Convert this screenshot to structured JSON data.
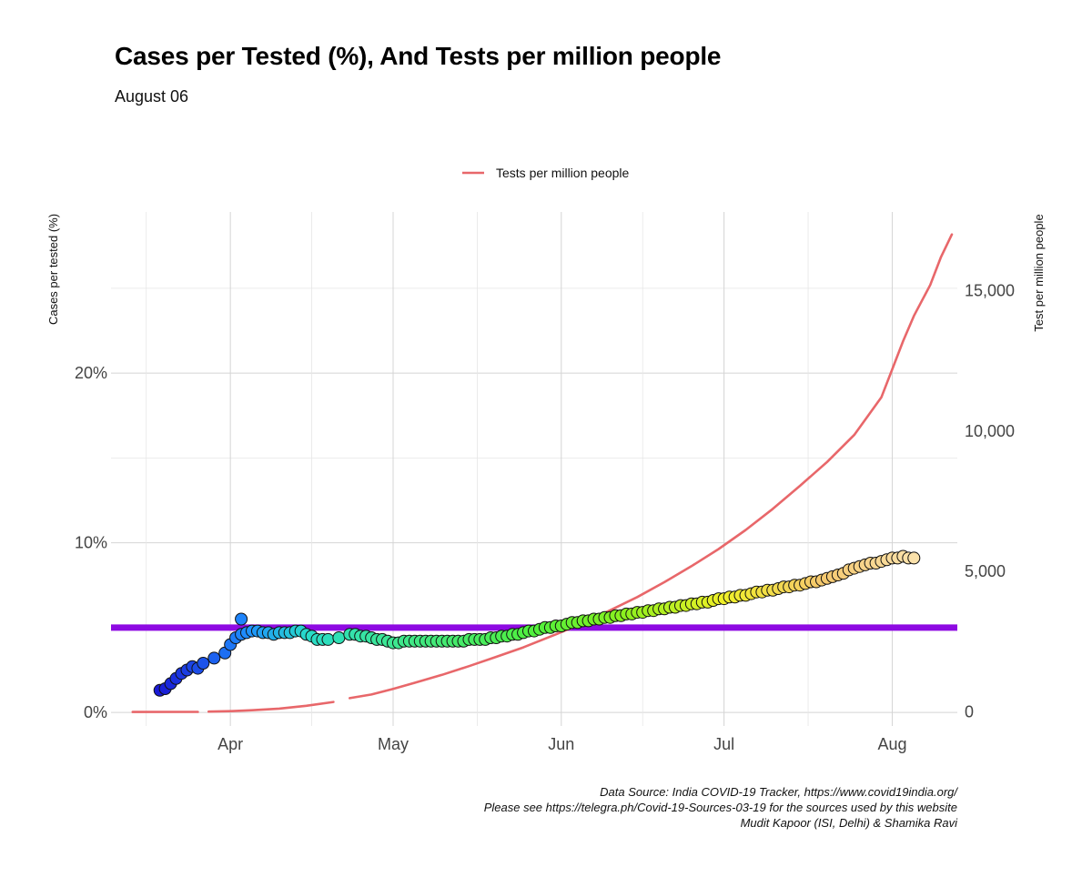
{
  "title": "Cases per Tested (%), And Tests per million people",
  "subtitle": "August 06",
  "legend": {
    "label": "Tests per million people",
    "color": "#e8676a"
  },
  "caption": [
    "Data Source: India COVID-19 Tracker, https://www.covid19india.org/",
    "Please see https://telegra.ph/Covid-19-Sources-03-19 for the sources used by this website",
    "Mudit Kapoor (ISI, Delhi) & Shamika Ravi"
  ],
  "chart_data": {
    "type": "scatter",
    "title": "Cases per Tested (%), And Tests per million people",
    "subtitle": "August 06",
    "ylabel": "Cases per tested (%)",
    "ylabel_right": "Test per million people",
    "x_axis": {
      "type": "date",
      "range": [
        "2020-03-10",
        "2020-08-13"
      ],
      "ticks": [
        {
          "date": "2020-04-01",
          "label": "Apr"
        },
        {
          "date": "2020-05-01",
          "label": "May"
        },
        {
          "date": "2020-06-01",
          "label": "Jun"
        },
        {
          "date": "2020-07-01",
          "label": "Jul"
        },
        {
          "date": "2020-08-01",
          "label": "Aug"
        }
      ]
    },
    "y_axis": {
      "range": [
        -0.8,
        29.5
      ],
      "ticks": [
        {
          "value": 0,
          "label": "0%"
        },
        {
          "value": 10,
          "label": "10%"
        },
        {
          "value": 20,
          "label": "20%"
        }
      ],
      "minor": [
        5,
        15,
        25
      ]
    },
    "y2_axis": {
      "range": [
        -500,
        17800
      ],
      "ticks": [
        {
          "value": 0,
          "label": "0"
        },
        {
          "value": 5000,
          "label": "5,000"
        },
        {
          "value": 10000,
          "label": "10,000"
        },
        {
          "value": 15000,
          "label": "15,000"
        }
      ]
    },
    "reference_line": {
      "y": 5,
      "color": "#8e0ae2"
    },
    "grid": true,
    "legend_position": "top",
    "series": [
      {
        "name": "Cases per tested (%)",
        "type": "scatter",
        "color_scale": "rainbow (blue to yellow by date)",
        "points": [
          [
            "2020-03-19",
            1.3
          ],
          [
            "2020-03-20",
            1.4
          ],
          [
            "2020-03-21",
            1.7
          ],
          [
            "2020-03-22",
            2.0
          ],
          [
            "2020-03-23",
            2.3
          ],
          [
            "2020-03-24",
            2.5
          ],
          [
            "2020-03-25",
            2.7
          ],
          [
            "2020-03-26",
            2.6
          ],
          [
            "2020-03-27",
            2.9
          ],
          [
            "2020-03-29",
            3.2
          ],
          [
            "2020-03-31",
            3.5
          ],
          [
            "2020-04-01",
            4.0
          ],
          [
            "2020-04-02",
            4.4
          ],
          [
            "2020-04-03",
            5.5
          ],
          [
            "2020-04-03",
            4.6
          ],
          [
            "2020-04-04",
            4.7
          ],
          [
            "2020-04-05",
            4.8
          ],
          [
            "2020-04-06",
            4.8
          ],
          [
            "2020-04-07",
            4.7
          ],
          [
            "2020-04-08",
            4.7
          ],
          [
            "2020-04-09",
            4.6
          ],
          [
            "2020-04-10",
            4.7
          ],
          [
            "2020-04-11",
            4.7
          ],
          [
            "2020-04-12",
            4.7
          ],
          [
            "2020-04-13",
            4.8
          ],
          [
            "2020-04-14",
            4.8
          ],
          [
            "2020-04-15",
            4.6
          ],
          [
            "2020-04-16",
            4.5
          ],
          [
            "2020-04-17",
            4.3
          ],
          [
            "2020-04-18",
            4.3
          ],
          [
            "2020-04-19",
            4.3
          ],
          [
            "2020-04-21",
            4.4
          ],
          [
            "2020-04-23",
            4.6
          ],
          [
            "2020-04-24",
            4.6
          ],
          [
            "2020-04-25",
            4.5
          ],
          [
            "2020-04-26",
            4.5
          ],
          [
            "2020-04-27",
            4.4
          ],
          [
            "2020-04-28",
            4.3
          ],
          [
            "2020-04-29",
            4.3
          ],
          [
            "2020-04-30",
            4.2
          ],
          [
            "2020-05-01",
            4.1
          ],
          [
            "2020-05-02",
            4.1
          ],
          [
            "2020-05-03",
            4.2
          ],
          [
            "2020-05-04",
            4.2
          ],
          [
            "2020-05-05",
            4.2
          ],
          [
            "2020-05-06",
            4.2
          ],
          [
            "2020-05-07",
            4.2
          ],
          [
            "2020-05-08",
            4.2
          ],
          [
            "2020-05-09",
            4.2
          ],
          [
            "2020-05-10",
            4.2
          ],
          [
            "2020-05-11",
            4.2
          ],
          [
            "2020-05-12",
            4.2
          ],
          [
            "2020-05-13",
            4.2
          ],
          [
            "2020-05-14",
            4.2
          ],
          [
            "2020-05-15",
            4.3
          ],
          [
            "2020-05-16",
            4.3
          ],
          [
            "2020-05-17",
            4.3
          ],
          [
            "2020-05-18",
            4.3
          ],
          [
            "2020-05-19",
            4.4
          ],
          [
            "2020-05-20",
            4.4
          ],
          [
            "2020-05-21",
            4.5
          ],
          [
            "2020-05-22",
            4.5
          ],
          [
            "2020-05-23",
            4.6
          ],
          [
            "2020-05-24",
            4.6
          ],
          [
            "2020-05-25",
            4.7
          ],
          [
            "2020-05-26",
            4.8
          ],
          [
            "2020-05-27",
            4.8
          ],
          [
            "2020-05-28",
            4.9
          ],
          [
            "2020-05-29",
            5.0
          ],
          [
            "2020-05-30",
            5.0
          ],
          [
            "2020-05-31",
            5.1
          ],
          [
            "2020-06-01",
            5.1
          ],
          [
            "2020-06-02",
            5.2
          ],
          [
            "2020-06-03",
            5.3
          ],
          [
            "2020-06-04",
            5.3
          ],
          [
            "2020-06-05",
            5.4
          ],
          [
            "2020-06-06",
            5.4
          ],
          [
            "2020-06-07",
            5.5
          ],
          [
            "2020-06-08",
            5.5
          ],
          [
            "2020-06-09",
            5.6
          ],
          [
            "2020-06-10",
            5.6
          ],
          [
            "2020-06-11",
            5.7
          ],
          [
            "2020-06-12",
            5.7
          ],
          [
            "2020-06-13",
            5.8
          ],
          [
            "2020-06-14",
            5.8
          ],
          [
            "2020-06-15",
            5.9
          ],
          [
            "2020-06-16",
            5.9
          ],
          [
            "2020-06-17",
            6.0
          ],
          [
            "2020-06-18",
            6.0
          ],
          [
            "2020-06-19",
            6.1
          ],
          [
            "2020-06-20",
            6.1
          ],
          [
            "2020-06-21",
            6.2
          ],
          [
            "2020-06-22",
            6.2
          ],
          [
            "2020-06-23",
            6.3
          ],
          [
            "2020-06-24",
            6.3
          ],
          [
            "2020-06-25",
            6.4
          ],
          [
            "2020-06-26",
            6.4
          ],
          [
            "2020-06-27",
            6.5
          ],
          [
            "2020-06-28",
            6.5
          ],
          [
            "2020-06-29",
            6.6
          ],
          [
            "2020-06-30",
            6.7
          ],
          [
            "2020-07-01",
            6.7
          ],
          [
            "2020-07-02",
            6.8
          ],
          [
            "2020-07-03",
            6.8
          ],
          [
            "2020-07-04",
            6.9
          ],
          [
            "2020-07-05",
            6.9
          ],
          [
            "2020-07-06",
            7.0
          ],
          [
            "2020-07-07",
            7.1
          ],
          [
            "2020-07-08",
            7.1
          ],
          [
            "2020-07-09",
            7.2
          ],
          [
            "2020-07-10",
            7.2
          ],
          [
            "2020-07-11",
            7.3
          ],
          [
            "2020-07-12",
            7.4
          ],
          [
            "2020-07-13",
            7.4
          ],
          [
            "2020-07-14",
            7.5
          ],
          [
            "2020-07-15",
            7.5
          ],
          [
            "2020-07-16",
            7.6
          ],
          [
            "2020-07-17",
            7.7
          ],
          [
            "2020-07-18",
            7.7
          ],
          [
            "2020-07-19",
            7.8
          ],
          [
            "2020-07-20",
            7.9
          ],
          [
            "2020-07-21",
            8.0
          ],
          [
            "2020-07-22",
            8.1
          ],
          [
            "2020-07-23",
            8.2
          ],
          [
            "2020-07-24",
            8.4
          ],
          [
            "2020-07-25",
            8.5
          ],
          [
            "2020-07-26",
            8.6
          ],
          [
            "2020-07-27",
            8.7
          ],
          [
            "2020-07-28",
            8.8
          ],
          [
            "2020-07-29",
            8.8
          ],
          [
            "2020-07-30",
            8.9
          ],
          [
            "2020-07-31",
            9.0
          ],
          [
            "2020-08-01",
            9.1
          ],
          [
            "2020-08-02",
            9.1
          ],
          [
            "2020-08-03",
            9.2
          ],
          [
            "2020-08-04",
            9.1
          ],
          [
            "2020-08-05",
            9.1
          ]
        ]
      },
      {
        "name": "Tests per million people",
        "type": "line",
        "color": "#e8676a",
        "segments": [
          [
            [
              "2020-03-14",
              0
            ],
            [
              "2020-03-26",
              3
            ]
          ],
          [
            [
              "2020-03-28",
              12
            ],
            [
              "2020-04-01",
              28
            ],
            [
              "2020-04-05",
              60
            ],
            [
              "2020-04-10",
              120
            ],
            [
              "2020-04-15",
              220
            ],
            [
              "2020-04-20",
              355
            ]
          ],
          [
            [
              "2020-04-23",
              490
            ],
            [
              "2020-04-27",
              620
            ],
            [
              "2020-05-01",
              820
            ],
            [
              "2020-05-05",
              1040
            ],
            [
              "2020-05-10",
              1320
            ],
            [
              "2020-05-15",
              1630
            ],
            [
              "2020-05-20",
              1960
            ],
            [
              "2020-05-25",
              2300
            ],
            [
              "2020-05-31",
              2760
            ],
            [
              "2020-06-05",
              3160
            ],
            [
              "2020-06-10",
              3620
            ],
            [
              "2020-06-15",
              4090
            ],
            [
              "2020-06-20",
              4620
            ],
            [
              "2020-06-25",
              5190
            ],
            [
              "2020-06-30",
              5800
            ],
            [
              "2020-07-05",
              6480
            ],
            [
              "2020-07-10",
              7230
            ],
            [
              "2020-07-15",
              8050
            ],
            [
              "2020-07-20",
              8900
            ],
            [
              "2020-07-25",
              9860
            ],
            [
              "2020-07-30",
              11200
            ],
            [
              "2020-08-01",
              12200
            ],
            [
              "2020-08-03",
              13200
            ],
            [
              "2020-08-05",
              14100
            ],
            [
              "2020-08-08",
              15200
            ],
            [
              "2020-08-10",
              16200
            ],
            [
              "2020-08-12",
              17000
            ]
          ]
        ]
      }
    ]
  }
}
